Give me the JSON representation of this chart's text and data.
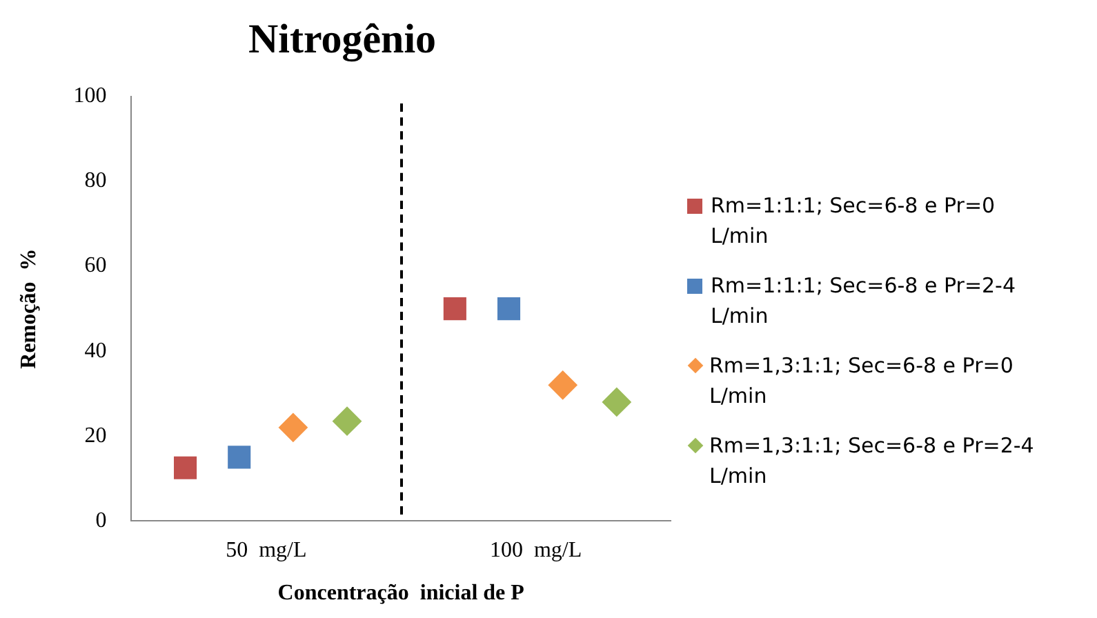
{
  "chart_data": {
    "type": "scatter",
    "title": "Nitrogênio",
    "xlabel": "Concentração  inicial de P",
    "ylabel": "Remoção  %",
    "categories": [
      "50  mg/L",
      "100  mg/L"
    ],
    "series": [
      {
        "name": "Rm=1:1:1; Sec=6-8 e Pr=0 L/min",
        "color": "#c0504d",
        "marker": "square",
        "values": [
          12.5,
          50
        ]
      },
      {
        "name": "Rm=1:1:1; Sec=6-8 e Pr=2-4 L/min",
        "color": "#4f81bd",
        "marker": "square",
        "values": [
          15,
          50
        ]
      },
      {
        "name": "Rm=1,3:1:1; Sec=6-8 e Pr=0 L/min",
        "color": "#f79646",
        "marker": "diamond",
        "values": [
          22,
          32
        ]
      },
      {
        "name": "Rm=1,3:1:1; Sec=6-8 e Pr=2-4 L/min",
        "color": "#9bbb59",
        "marker": "diamond",
        "values": [
          23.5,
          28
        ]
      }
    ],
    "ylim": [
      0,
      100
    ],
    "yticks": [
      0,
      20,
      40,
      60,
      80,
      100
    ],
    "grid": false,
    "legend": "right"
  }
}
